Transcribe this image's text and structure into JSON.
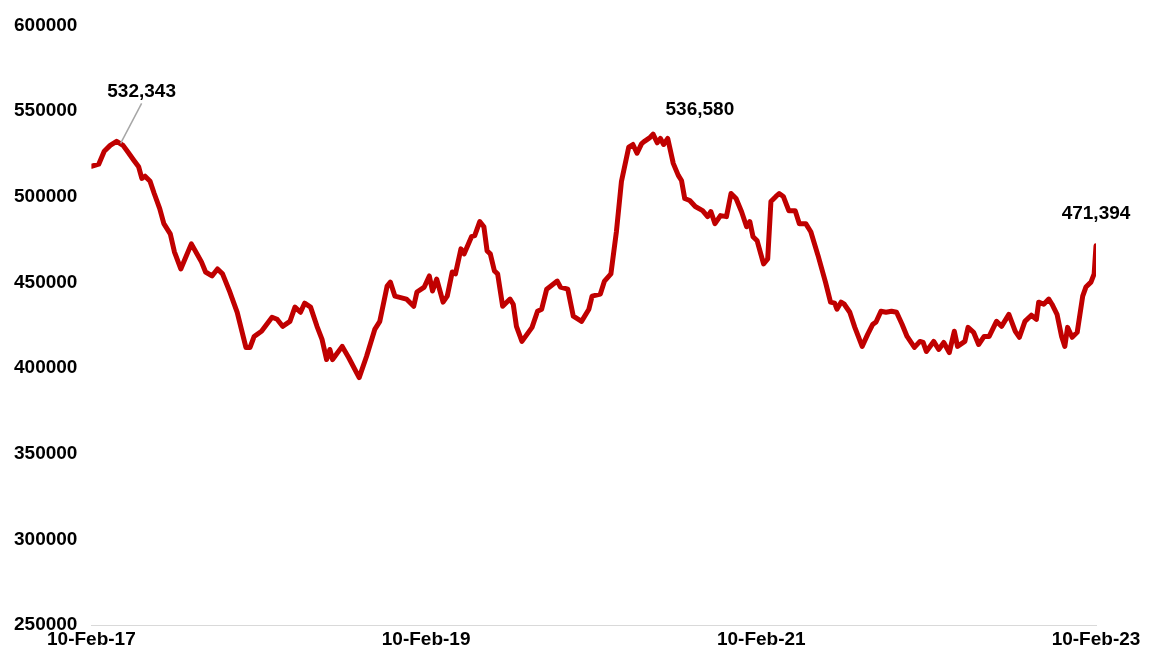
{
  "chart_data": {
    "type": "line",
    "x": [
      "2017-02-10",
      "2017-02-26",
      "2017-03-10",
      "2017-03-23",
      "2017-04-06",
      "2017-04-20",
      "2017-05-01",
      "2017-05-13",
      "2017-05-24",
      "2017-05-31",
      "2017-06-07",
      "2017-06-18",
      "2017-06-27",
      "2017-07-09",
      "2017-07-18",
      "2017-08-01",
      "2017-08-10",
      "2017-08-24",
      "2017-09-16",
      "2017-10-08",
      "2017-10-17",
      "2017-10-31",
      "2017-11-12",
      "2017-11-23",
      "2017-12-09",
      "2017-12-25",
      "2018-01-13",
      "2018-01-22",
      "2018-01-31",
      "2018-02-16",
      "2018-03-11",
      "2018-03-22",
      "2018-04-03",
      "2018-04-19",
      "2018-04-30",
      "2018-05-12",
      "2018-05-21",
      "2018-06-03",
      "2018-06-17",
      "2018-06-28",
      "2018-07-08",
      "2018-07-15",
      "2018-07-21",
      "2018-08-11",
      "2018-08-25",
      "2018-09-17",
      "2018-10-03",
      "2018-10-21",
      "2018-11-01",
      "2018-11-17",
      "2018-11-24",
      "2018-12-04",
      "2018-12-29",
      "2019-01-14",
      "2019-01-21",
      "2019-02-06",
      "2019-02-17",
      "2019-02-24",
      "2019-03-05",
      "2019-03-19",
      "2019-03-28",
      "2019-04-08",
      "2019-04-15",
      "2019-04-27",
      "2019-05-04",
      "2019-05-20",
      "2019-05-27",
      "2019-06-07",
      "2019-06-16",
      "2019-06-23",
      "2019-06-30",
      "2019-07-09",
      "2019-07-16",
      "2019-07-27",
      "2019-08-12",
      "2019-08-19",
      "2019-08-26",
      "2019-09-07",
      "2019-09-29",
      "2019-10-11",
      "2019-10-20",
      "2019-10-31",
      "2019-11-23",
      "2019-11-30",
      "2019-12-16",
      "2019-12-28",
      "2020-01-15",
      "2020-01-31",
      "2020-02-07",
      "2020-02-25",
      "2020-03-05",
      "2020-03-19",
      "2020-03-31",
      "2020-04-11",
      "2020-04-27",
      "2020-05-06",
      "2020-05-15",
      "2020-05-25",
      "2020-06-01",
      "2020-06-12",
      "2020-06-19",
      "2020-06-28",
      "2020-07-05",
      "2020-07-12",
      "2020-07-21",
      "2020-08-02",
      "2020-08-13",
      "2020-08-20",
      "2020-08-27",
      "2020-09-07",
      "2020-09-19",
      "2020-10-05",
      "2020-10-16",
      "2020-10-23",
      "2020-11-01",
      "2020-11-13",
      "2020-11-26",
      "2020-12-06",
      "2020-12-17",
      "2020-12-29",
      "2021-01-09",
      "2021-01-16",
      "2021-01-23",
      "2021-02-01",
      "2021-02-15",
      "2021-02-24",
      "2021-03-03",
      "2021-03-14",
      "2021-03-21",
      "2021-03-30",
      "2021-04-11",
      "2021-04-25",
      "2021-05-04",
      "2021-05-18",
      "2021-05-29",
      "2021-06-14",
      "2021-06-30",
      "2021-07-11",
      "2021-07-20",
      "2021-07-25",
      "2021-08-03",
      "2021-08-10",
      "2021-08-22",
      "2021-09-02",
      "2021-09-18",
      "2021-09-30",
      "2021-10-11",
      "2021-10-18",
      "2021-10-29",
      "2021-11-09",
      "2021-11-21",
      "2021-12-02",
      "2021-12-14",
      "2021-12-25",
      "2022-01-10",
      "2022-01-22",
      "2022-01-29",
      "2022-02-05",
      "2022-02-21",
      "2022-03-04",
      "2022-03-15",
      "2022-03-27",
      "2022-04-07",
      "2022-04-14",
      "2022-04-30",
      "2022-05-07",
      "2022-05-19",
      "2022-05-30",
      "2022-06-11",
      "2022-06-22",
      "2022-07-08",
      "2022-07-19",
      "2022-08-04",
      "2022-08-18",
      "2022-08-27",
      "2022-09-08",
      "2022-09-22",
      "2022-10-03",
      "2022-10-08",
      "2022-10-19",
      "2022-10-30",
      "2022-11-06",
      "2022-11-17",
      "2022-11-27",
      "2022-12-04",
      "2022-12-10",
      "2022-12-20",
      "2022-12-31",
      "2023-01-12",
      "2023-01-19",
      "2023-01-30",
      "2023-02-06",
      "2023-02-10"
    ],
    "series": [
      {
        "color": "#c00000",
        "values": [
          517800,
          519000,
          526600,
          530000,
          532343,
          530000,
          526000,
          521500,
          517500,
          510700,
          512000,
          509000,
          501900,
          493100,
          484300,
          478400,
          467900,
          457900,
          472500,
          462000,
          456100,
          453800,
          457900,
          455000,
          444400,
          432600,
          412100,
          412100,
          418500,
          421500,
          429700,
          428500,
          424400,
          427300,
          435600,
          432600,
          437900,
          435600,
          424400,
          416800,
          405000,
          410900,
          405000,
          412700,
          406200,
          394500,
          406800,
          422600,
          427300,
          447900,
          450200,
          442000,
          440300,
          436100,
          444400,
          447300,
          453800,
          445000,
          452000,
          438500,
          442000,
          456100,
          455000,
          469600,
          466700,
          476700,
          477300,
          485500,
          482500,
          468400,
          466700,
          456700,
          455000,
          436100,
          440300,
          437300,
          424400,
          415600,
          423800,
          433200,
          434400,
          446100,
          450800,
          447300,
          446100,
          430300,
          427300,
          434400,
          442000,
          443200,
          450800,
          455000,
          479600,
          508900,
          529000,
          530500,
          525400,
          531000,
          532500,
          534500,
          536580,
          531500,
          534000,
          530500,
          534000,
          519500,
          512500,
          509500,
          499000,
          497800,
          494300,
          491900,
          488400,
          491400,
          484300,
          489000,
          488400,
          501900,
          499000,
          491300,
          482500,
          485500,
          476700,
          474300,
          460800,
          463700,
          497200,
          500200,
          501900,
          500200,
          491900,
          491900,
          484300,
          484300,
          479600,
          465500,
          450200,
          438500,
          437900,
          434400,
          438500,
          437300,
          432600,
          423800,
          412700,
          419700,
          425600,
          426800,
          433200,
          432600,
          433200,
          432600,
          425600,
          418500,
          412100,
          415600,
          415000,
          409700,
          415600,
          410900,
          415000,
          409100,
          421500,
          412700,
          415600,
          423800,
          420900,
          413800,
          418500,
          418500,
          427300,
          424400,
          431400,
          421500,
          418000,
          427300,
          430900,
          428500,
          438500,
          437300,
          440300,
          437300,
          431400,
          418500,
          412700,
          423800,
          418000,
          420900,
          442000,
          447300,
          450200,
          455000,
          471394
        ]
      }
    ],
    "xlim": [
      "2017-02-10",
      "2023-02-10"
    ],
    "xticks": [
      {
        "value": "2017-02-10",
        "label": "10-Feb-17"
      },
      {
        "value": "2019-02-10",
        "label": "10-Feb-19"
      },
      {
        "value": "2021-02-10",
        "label": "10-Feb-21"
      },
      {
        "value": "2023-02-10",
        "label": "10-Feb-23"
      }
    ],
    "ylim": [
      250000,
      600000
    ],
    "yticks": [
      250000,
      300000,
      350000,
      400000,
      450000,
      500000,
      550000,
      600000
    ],
    "annotations": [
      {
        "text": "532,343",
        "x": "2017-04-06",
        "y": 532343
      },
      {
        "text": "536,580",
        "x": "2020-06-12",
        "y": 536580
      },
      {
        "text": "471,394",
        "x": "2023-02-10",
        "y": 471394
      }
    ],
    "grid": false,
    "legend": false,
    "marker": "none",
    "line_style": "solid"
  }
}
